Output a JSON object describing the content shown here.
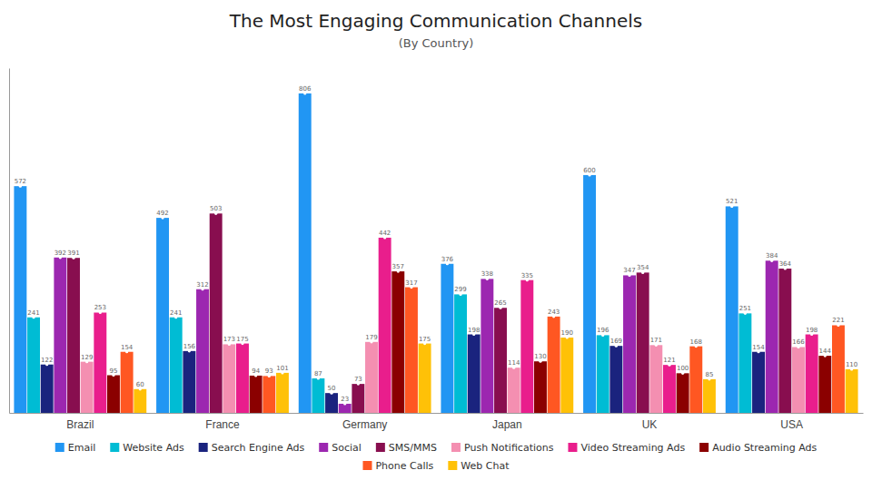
{
  "chart_data": {
    "type": "bar",
    "title": "The Most Engaging Communication Channels",
    "subtitle": "(By Country)",
    "categories": [
      "Brazil",
      "France",
      "Germany",
      "Japan",
      "UK",
      "USA"
    ],
    "series": [
      {
        "name": "Email",
        "color": "#2196F3",
        "values": [
          572,
          492,
          806,
          376,
          600,
          521
        ]
      },
      {
        "name": "Website Ads",
        "color": "#00BCD4",
        "values": [
          241,
          241,
          87,
          299,
          196,
          251
        ]
      },
      {
        "name": "Search Engine Ads",
        "color": "#1A237E",
        "values": [
          122,
          156,
          50,
          198,
          169,
          154
        ]
      },
      {
        "name": "Social",
        "color": "#9C27B0",
        "values": [
          392,
          312,
          23,
          338,
          347,
          384
        ]
      },
      {
        "name": "SMS/MMS",
        "color": "#880E4F",
        "values": [
          391,
          503,
          73,
          265,
          354,
          364
        ]
      },
      {
        "name": "Push Notifications",
        "color": "#F48FB1",
        "values": [
          129,
          173,
          179,
          114,
          171,
          166
        ]
      },
      {
        "name": "Video Streaming Ads",
        "color": "#E91E8C",
        "values": [
          253,
          175,
          442,
          335,
          121,
          198
        ]
      },
      {
        "name": "Audio Streaming Ads",
        "color": "#8B0000",
        "values": [
          95,
          94,
          357,
          130,
          100,
          144
        ]
      },
      {
        "name": "Phone Calls",
        "color": "#FF5722",
        "values": [
          154,
          93,
          317,
          243,
          168,
          221
        ]
      },
      {
        "name": "Web Chat",
        "color": "#FFC107",
        "values": [
          60,
          101,
          175,
          190,
          85,
          110
        ]
      }
    ],
    "ylim": [
      0,
      870
    ],
    "grid": false,
    "legend": "bottom",
    "data_labels": true,
    "tick_labels": "x"
  }
}
